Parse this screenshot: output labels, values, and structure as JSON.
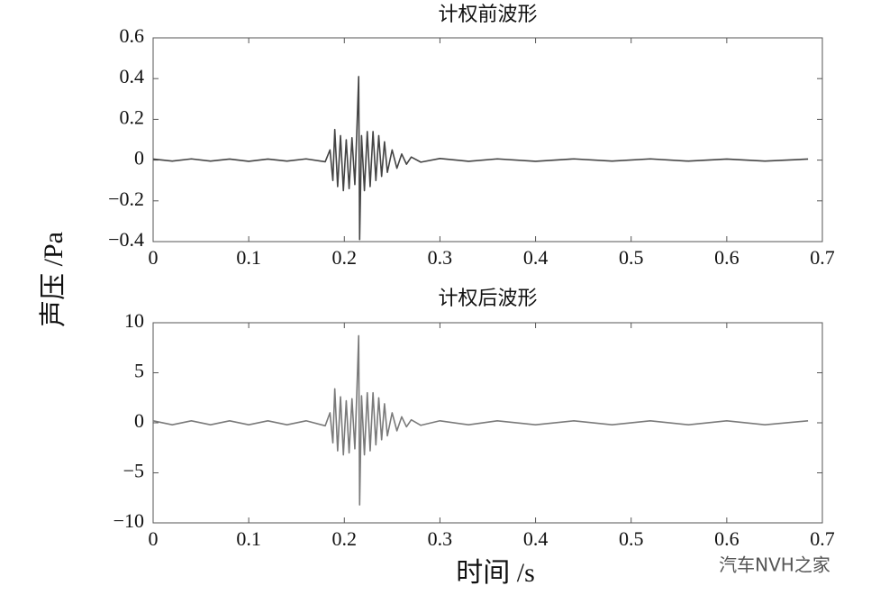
{
  "chart_data": [
    {
      "type": "line",
      "title": "计权前波形",
      "x": [
        0,
        0.02,
        0.04,
        0.06,
        0.08,
        0.1,
        0.12,
        0.14,
        0.16,
        0.18,
        0.185,
        0.188,
        0.19,
        0.193,
        0.196,
        0.199,
        0.202,
        0.205,
        0.208,
        0.211,
        0.213,
        0.215,
        0.216,
        0.218,
        0.221,
        0.224,
        0.227,
        0.23,
        0.233,
        0.236,
        0.239,
        0.242,
        0.245,
        0.25,
        0.255,
        0.26,
        0.265,
        0.27,
        0.28,
        0.3,
        0.33,
        0.36,
        0.4,
        0.44,
        0.48,
        0.52,
        0.56,
        0.6,
        0.64,
        0.685
      ],
      "series": [
        {
          "color": "#444444",
          "values": [
            0.005,
            -0.005,
            0.006,
            -0.005,
            0.005,
            -0.006,
            0.005,
            -0.005,
            0.006,
            -0.008,
            0.05,
            -0.1,
            0.15,
            -0.13,
            0.12,
            -0.15,
            0.1,
            -0.14,
            0.11,
            -0.12,
            0.13,
            0.41,
            -0.39,
            0.12,
            -0.15,
            0.14,
            -0.13,
            0.14,
            -0.1,
            0.12,
            -0.08,
            0.09,
            -0.06,
            0.05,
            -0.04,
            0.03,
            -0.02,
            0.015,
            -0.01,
            0.008,
            -0.006,
            0.006,
            -0.006,
            0.006,
            -0.005,
            0.006,
            -0.005,
            0.005,
            -0.005,
            0.005
          ]
        }
      ],
      "xlim": [
        0,
        0.7
      ],
      "xticks": [
        0,
        0.1,
        0.2,
        0.3,
        0.4,
        0.5,
        0.6,
        0.7
      ],
      "ylim": [
        -0.4,
        0.6
      ],
      "yticks": [
        {
          "value": -0.4,
          "label": "−0.4"
        },
        {
          "value": -0.2,
          "label": "−0.2"
        },
        0,
        0.2,
        0.4,
        0.6
      ]
    },
    {
      "type": "line",
      "title": "计权后波形",
      "x": [
        0,
        0.02,
        0.04,
        0.06,
        0.08,
        0.1,
        0.12,
        0.14,
        0.16,
        0.18,
        0.185,
        0.188,
        0.19,
        0.193,
        0.196,
        0.199,
        0.202,
        0.205,
        0.208,
        0.211,
        0.213,
        0.215,
        0.216,
        0.218,
        0.221,
        0.224,
        0.227,
        0.23,
        0.233,
        0.236,
        0.239,
        0.242,
        0.245,
        0.25,
        0.255,
        0.26,
        0.265,
        0.27,
        0.28,
        0.3,
        0.33,
        0.36,
        0.4,
        0.44,
        0.48,
        0.52,
        0.56,
        0.6,
        0.64,
        0.685
      ],
      "series": [
        {
          "color": "#7a7a7a",
          "values": [
            0.2,
            -0.2,
            0.2,
            -0.2,
            0.2,
            -0.2,
            0.2,
            -0.2,
            0.2,
            -0.3,
            1,
            -2,
            3.4,
            -2.8,
            2.6,
            -3.2,
            2.2,
            -3,
            2.4,
            -2.6,
            2.8,
            8.7,
            -8.2,
            2.7,
            -3.2,
            3,
            -2.8,
            3,
            -2.2,
            2.5,
            -1.7,
            1.9,
            -1.3,
            1,
            -0.8,
            0.6,
            -0.4,
            0.3,
            -0.25,
            0.2,
            -0.2,
            0.2,
            -0.2,
            0.2,
            -0.2,
            0.2,
            -0.2,
            0.2,
            -0.2,
            0.2
          ]
        }
      ],
      "xlim": [
        0,
        0.7
      ],
      "xticks": [
        0,
        0.1,
        0.2,
        0.3,
        0.4,
        0.5,
        0.6,
        0.7
      ],
      "ylim": [
        -10,
        10
      ],
      "yticks": [
        {
          "value": -10,
          "label": "−10"
        },
        {
          "value": -5,
          "label": "−5"
        },
        0,
        5,
        10
      ]
    }
  ],
  "ylabel": "声压 /Pa",
  "xlabel": "时间 /s",
  "watermark": "汽车NVH之家"
}
